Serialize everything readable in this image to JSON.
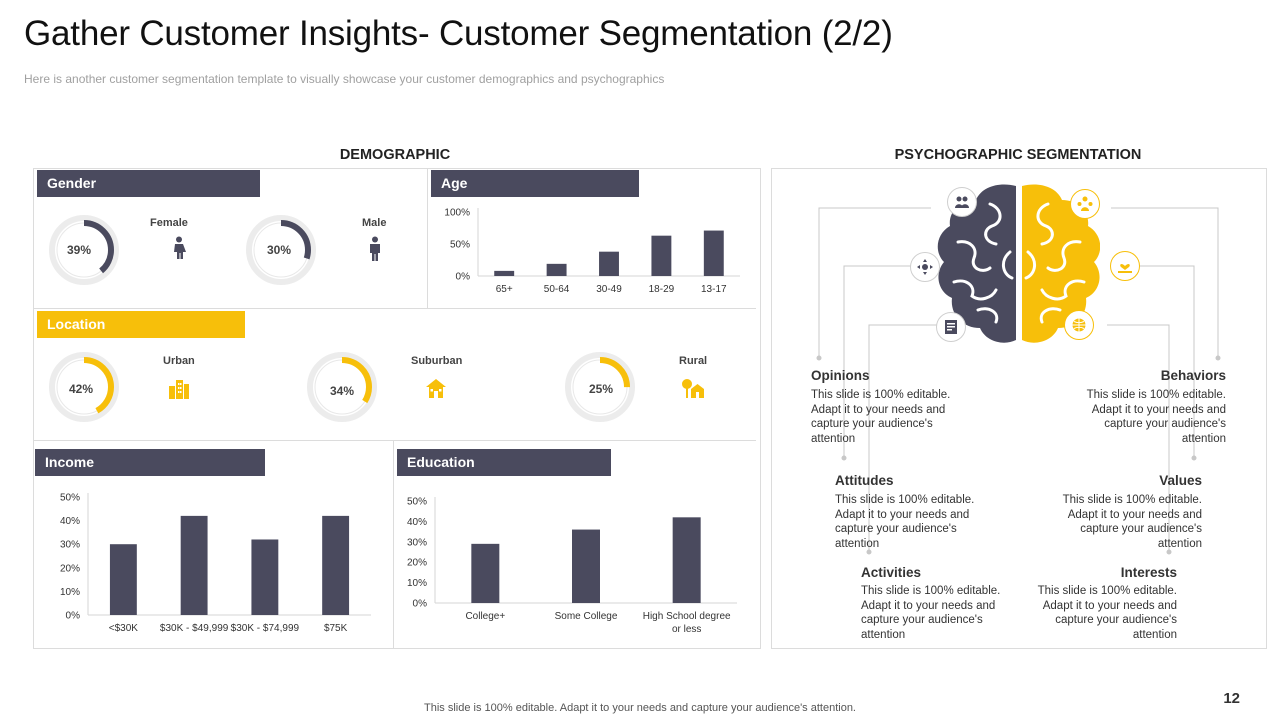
{
  "title": "Gather Customer Insights- Customer Segmentation (2/2)",
  "subtitle": "Here is another customer segmentation template to visually showcase your customer demographics and psychographics",
  "colors": {
    "dark": "#4a4a5e",
    "yellow": "#f7bf0a",
    "ring_bg": "#e4e4e4"
  },
  "demographic": {
    "heading": "DEMOGRAPHIC",
    "gender": {
      "header": "Gender",
      "items": [
        {
          "label": "Female",
          "percent": "39%",
          "value": 39,
          "icon": "female-person-icon"
        },
        {
          "label": "Male",
          "percent": "30%",
          "value": 30,
          "icon": "male-person-icon"
        }
      ]
    },
    "location": {
      "header": "Location",
      "items": [
        {
          "label": "Urban",
          "percent": "42%",
          "value": 42,
          "icon": "city-buildings-icon"
        },
        {
          "label": "Suburban",
          "percent": "34%",
          "value": 34,
          "icon": "house-icon"
        },
        {
          "label": "Rural",
          "percent": "25%",
          "value": 25,
          "icon": "farm-tree-house-icon"
        }
      ]
    }
  },
  "psychographic": {
    "heading": "PSYCHOGRAPHIC SEGMENTATION",
    "items": [
      {
        "title": "Opinions",
        "desc": "This slide is 100% editable. Adapt it to your needs and capture your audience's attention"
      },
      {
        "title": "Attitudes",
        "desc": "This slide is 100% editable. Adapt it to your needs and capture your audience's attention"
      },
      {
        "title": "Activities",
        "desc": "This slide is 100% editable. Adapt it to your needs and capture your audience's attention"
      },
      {
        "title": "Behaviors",
        "desc": "This slide is 100% editable. Adapt it to your needs and capture your audience's attention"
      },
      {
        "title": "Values",
        "desc": "This slide is 100% editable. Adapt it to your needs and capture your audience's attention"
      },
      {
        "title": "Interests",
        "desc": "This slide is 100% editable. Adapt it to your needs and capture your audience's attention"
      }
    ],
    "icons": [
      "people-group-icon",
      "network-arrows-icon",
      "document-icon",
      "team-icon",
      "hand-heart-icon",
      "globe-icon"
    ]
  },
  "chart_data": [
    {
      "id": "age",
      "header": "Age",
      "type": "bar",
      "categories": [
        "65+",
        "50-64",
        "30-49",
        "18-29",
        "13-17"
      ],
      "values": [
        8,
        19,
        38,
        63,
        71
      ],
      "ylim": [
        0,
        100
      ],
      "yticks": [
        "0%",
        "50%",
        "100%"
      ],
      "ytick_values": [
        0,
        50,
        100
      ]
    },
    {
      "id": "income",
      "header": "Income",
      "type": "bar",
      "categories": [
        "<$30K",
        "$30K - $49,999",
        "$30K - $74,999",
        "$75K"
      ],
      "values": [
        30,
        42,
        32,
        42
      ],
      "ylim": [
        0,
        50
      ],
      "yticks": [
        "0%",
        "10%",
        "20%",
        "30%",
        "40%",
        "50%"
      ],
      "ytick_values": [
        0,
        10,
        20,
        30,
        40,
        50
      ]
    },
    {
      "id": "education",
      "header": "Education",
      "type": "bar",
      "categories": [
        "College+",
        "Some College",
        "High School degree or less"
      ],
      "values": [
        29,
        36,
        42
      ],
      "ylim": [
        0,
        50
      ],
      "yticks": [
        "0%",
        "10%",
        "20%",
        "30%",
        "40%",
        "50%"
      ],
      "ytick_values": [
        0,
        10,
        20,
        30,
        40,
        50
      ]
    }
  ],
  "footer": "This slide is 100% editable. Adapt it to your needs and capture your audience's attention.",
  "page_number": "12"
}
